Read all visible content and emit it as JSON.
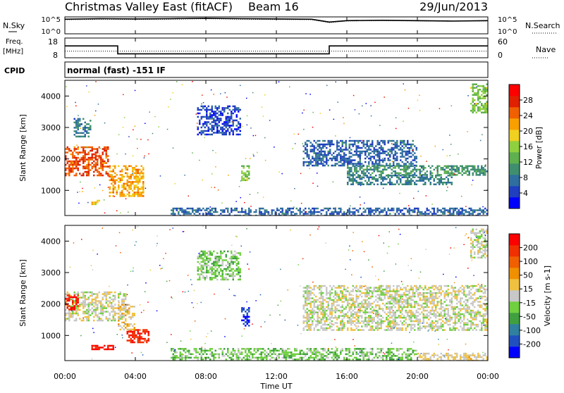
{
  "header": {
    "title": "Christmas Valley East (fitACF)",
    "beam": "Beam 16",
    "date": "29/Jun/2013"
  },
  "noise_panel": {
    "left_label": "N.Sky",
    "left_ticks": [
      "10^5",
      "10^0"
    ],
    "right_label": "N.Search",
    "right_ticks": [
      "10^5",
      "10^0"
    ]
  },
  "freq_panel": {
    "left_label_line1": "Freq.",
    "left_label_line2": "[MHz]",
    "left_ticks": [
      "18",
      "8"
    ],
    "right_label": "Nave",
    "right_ticks": [
      "60",
      "0"
    ]
  },
  "cpid": {
    "label": "CPID",
    "text": "normal (fast) -151 IF"
  },
  "range_axis": {
    "label": "Slant Range [km]",
    "ticks": [
      "4000",
      "3000",
      "2000",
      "1000"
    ]
  },
  "time_axis": {
    "label": "Time UT",
    "ticks": [
      "00:00",
      "04:00",
      "08:00",
      "12:00",
      "16:00",
      "20:00",
      "00:00"
    ]
  },
  "power_colorbar": {
    "label": "Power [dB]",
    "ticks": [
      "28",
      "24",
      "20",
      "16",
      "12",
      "8",
      "4"
    ],
    "colors": [
      "#0000ff",
      "#1f3fbf",
      "#2f6f9f",
      "#3f8f6f",
      "#5fb04f",
      "#8fd03f",
      "#f0d020",
      "#f8a000",
      "#f06000",
      "#e02000",
      "#ff0000"
    ]
  },
  "velocity_colorbar": {
    "label": "Velocity [m s-1]",
    "ticks": [
      "200",
      "100",
      "50",
      "15",
      "-15",
      "-50",
      "-100",
      "-200"
    ],
    "colors": [
      "#0000ff",
      "#2050c0",
      "#3080a0",
      "#40a040",
      "#70d040",
      "#c8c8c8",
      "#f0c040",
      "#f09000",
      "#f06000",
      "#f03000",
      "#ff0000"
    ]
  },
  "chart_data": [
    {
      "type": "line",
      "title": "N.Sky / N.Search",
      "x_range_hours": [
        0,
        24
      ],
      "y_scale": "log",
      "ylim": [
        1,
        100000
      ],
      "series": [
        {
          "name": "N.Sky",
          "x": [
            0,
            2,
            4,
            6,
            8,
            10,
            12,
            14,
            15,
            16,
            18,
            20,
            22,
            24
          ],
          "y": [
            20000,
            30000,
            25000,
            30000,
            40000,
            30000,
            25000,
            20000,
            3000,
            8000,
            10000,
            8000,
            6000,
            8000
          ]
        },
        {
          "name": "N.Search",
          "x": [
            0,
            2,
            4,
            6,
            8,
            10,
            12,
            14,
            15,
            16,
            18,
            20,
            22,
            24
          ],
          "y": [
            15000,
            20000,
            18000,
            20000,
            30000,
            20000,
            18000,
            15000,
            2000,
            6000,
            8000,
            6000,
            5000,
            6000
          ]
        }
      ]
    },
    {
      "type": "line",
      "title": "Freq. / Nave",
      "x_range_hours": [
        0,
        24
      ],
      "series": [
        {
          "name": "Freq.",
          "units": "MHz",
          "ylim": [
            8,
            18
          ],
          "x": [
            0,
            3,
            3,
            15,
            15,
            24
          ],
          "y": [
            14,
            14,
            10,
            10,
            14,
            14
          ]
        },
        {
          "name": "Nave",
          "ylim": [
            0,
            60
          ],
          "x": [
            0,
            24
          ],
          "y": [
            20,
            20
          ]
        }
      ]
    },
    {
      "type": "heatmap",
      "title": "Power [dB]",
      "x_label": "Time UT",
      "y_label": "Slant Range [km]",
      "x_range_hours": [
        0,
        24
      ],
      "ylim": [
        200,
        4500
      ],
      "value_range": [
        0,
        30
      ],
      "regions": [
        {
          "t0": 0.0,
          "t1": 2.5,
          "r0": 1500,
          "r1": 2400,
          "value": 24
        },
        {
          "t0": 2.5,
          "t1": 4.5,
          "r0": 800,
          "r1": 1800,
          "value": 20
        },
        {
          "t0": 0.5,
          "t1": 1.5,
          "r0": 2700,
          "r1": 3300,
          "value": 8
        },
        {
          "t0": 1.5,
          "t1": 2.0,
          "r0": 550,
          "r1": 700,
          "value": 18
        },
        {
          "t0": 7.5,
          "t1": 10.0,
          "r0": 2800,
          "r1": 3700,
          "value": 4
        },
        {
          "t0": 10.0,
          "t1": 10.5,
          "r0": 1300,
          "r1": 1800,
          "value": 14
        },
        {
          "t0": 13.5,
          "t1": 20.0,
          "r0": 1800,
          "r1": 2600,
          "value": 6
        },
        {
          "t0": 16.0,
          "t1": 24.0,
          "r0": 1500,
          "r1": 1800,
          "value": 10
        },
        {
          "t0": 16.0,
          "t1": 22.0,
          "r0": 1200,
          "r1": 1500,
          "value": 8
        },
        {
          "t0": 23.0,
          "t1": 24.0,
          "r0": 3500,
          "r1": 4400,
          "value": 14
        },
        {
          "t0": 6.0,
          "t1": 24.0,
          "r0": 200,
          "r1": 450,
          "value": 6
        }
      ]
    },
    {
      "type": "heatmap",
      "title": "Velocity [m s-1]",
      "x_label": "Time UT",
      "y_label": "Slant Range [km]",
      "x_range_hours": [
        0,
        24
      ],
      "ylim": [
        200,
        4500
      ],
      "value_range": [
        -250,
        250
      ],
      "regions": [
        {
          "t0": 0.0,
          "t1": 3.5,
          "r0": 1500,
          "r1": 2400,
          "value": 0
        },
        {
          "t0": 0.0,
          "t1": 0.8,
          "r0": 1800,
          "r1": 2300,
          "value": 200
        },
        {
          "t0": 3.5,
          "t1": 4.8,
          "r0": 800,
          "r1": 1200,
          "value": 200
        },
        {
          "t0": 1.5,
          "t1": 2.8,
          "r0": 550,
          "r1": 700,
          "value": 220
        },
        {
          "t0": 3.0,
          "t1": 4.0,
          "r0": 1200,
          "r1": 2000,
          "value": 40
        },
        {
          "t0": 10.0,
          "t1": 10.5,
          "r0": 1300,
          "r1": 1900,
          "value": -200
        },
        {
          "t0": 7.5,
          "t1": 10.0,
          "r0": 2800,
          "r1": 3700,
          "value": -50
        },
        {
          "t0": 13.5,
          "t1": 24.0,
          "r0": 1200,
          "r1": 2600,
          "value": 0
        },
        {
          "t0": 6.0,
          "t1": 20.0,
          "r0": 200,
          "r1": 600,
          "value": -50
        },
        {
          "t0": 20.0,
          "t1": 24.0,
          "r0": 200,
          "r1": 450,
          "value": 30
        },
        {
          "t0": 23.0,
          "t1": 24.0,
          "r0": 3500,
          "r1": 4400,
          "value": 0
        }
      ]
    }
  ]
}
